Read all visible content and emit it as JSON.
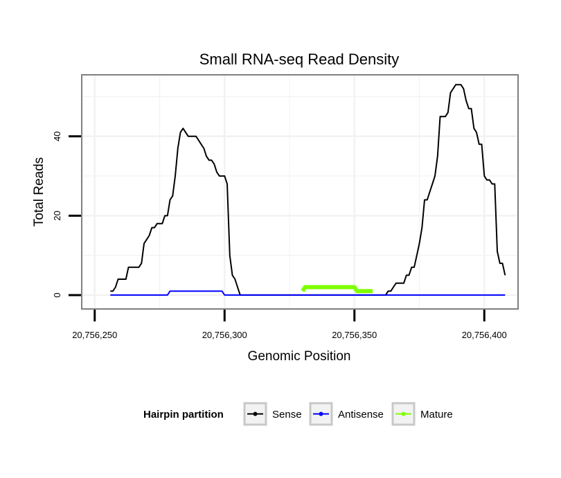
{
  "chart_data": {
    "type": "line",
    "title": "Small RNA-seq Read Density",
    "xlabel": "Genomic Position",
    "ylabel": "Total Reads",
    "xlim": [
      20756245,
      20756413
    ],
    "ylim": [
      -3.5,
      55.5
    ],
    "x_ticks": [
      20756250,
      20756300,
      20756350,
      20756400
    ],
    "x_tick_labels": [
      "20,756,250",
      "20,756,300",
      "20,756,350",
      "20,756,400"
    ],
    "y_ticks": [
      0,
      20,
      40
    ],
    "y_tick_labels": [
      "0",
      "20",
      "40"
    ],
    "grid": true,
    "legend": {
      "title": "Hairpin partition",
      "position": "bottom",
      "entries": [
        "Sense",
        "Antisense",
        "Mature"
      ]
    },
    "series": [
      {
        "name": "Sense",
        "color": "#000000",
        "points": [
          [
            20756256,
            1
          ],
          [
            20756257,
            1
          ],
          [
            20756258,
            2
          ],
          [
            20756259,
            4
          ],
          [
            20756261,
            4
          ],
          [
            20756262,
            4
          ],
          [
            20756263,
            7
          ],
          [
            20756266,
            7
          ],
          [
            20756267,
            7
          ],
          [
            20756268,
            8
          ],
          [
            20756269,
            13
          ],
          [
            20756270,
            14
          ],
          [
            20756271,
            15
          ],
          [
            20756272,
            17
          ],
          [
            20756273,
            17
          ],
          [
            20756274,
            18
          ],
          [
            20756276,
            18
          ],
          [
            20756277,
            20
          ],
          [
            20756278,
            20
          ],
          [
            20756279,
            24
          ],
          [
            20756280,
            25
          ],
          [
            20756281,
            30
          ],
          [
            20756282,
            37
          ],
          [
            20756283,
            41
          ],
          [
            20756284,
            42
          ],
          [
            20756285,
            41
          ],
          [
            20756286,
            40
          ],
          [
            20756288,
            40
          ],
          [
            20756289,
            40
          ],
          [
            20756290,
            39
          ],
          [
            20756291,
            38
          ],
          [
            20756292,
            37
          ],
          [
            20756293,
            35
          ],
          [
            20756294,
            34
          ],
          [
            20756295,
            34
          ],
          [
            20756296,
            33
          ],
          [
            20756297,
            31
          ],
          [
            20756298,
            30
          ],
          [
            20756299,
            30
          ],
          [
            20756300,
            30
          ],
          [
            20756301,
            28
          ],
          [
            20756302,
            10
          ],
          [
            20756303,
            5
          ],
          [
            20756304,
            4
          ],
          [
            20756305,
            2
          ],
          [
            20756306,
            0
          ],
          [
            20756330,
            0
          ],
          [
            20756362,
            0
          ],
          [
            20756363,
            1
          ],
          [
            20756364,
            1
          ],
          [
            20756365,
            2
          ],
          [
            20756366,
            3
          ],
          [
            20756368,
            3
          ],
          [
            20756369,
            3
          ],
          [
            20756370,
            5
          ],
          [
            20756371,
            5
          ],
          [
            20756372,
            7
          ],
          [
            20756373,
            7
          ],
          [
            20756374,
            10
          ],
          [
            20756375,
            13
          ],
          [
            20756376,
            17
          ],
          [
            20756377,
            24
          ],
          [
            20756378,
            24
          ],
          [
            20756379,
            26
          ],
          [
            20756380,
            28
          ],
          [
            20756381,
            30
          ],
          [
            20756382,
            35
          ],
          [
            20756383,
            45
          ],
          [
            20756385,
            45
          ],
          [
            20756386,
            46
          ],
          [
            20756387,
            51
          ],
          [
            20756388,
            52
          ],
          [
            20756389,
            53
          ],
          [
            20756391,
            53
          ],
          [
            20756392,
            52
          ],
          [
            20756393,
            49
          ],
          [
            20756394,
            47
          ],
          [
            20756395,
            47
          ],
          [
            20756396,
            42
          ],
          [
            20756397,
            41
          ],
          [
            20756398,
            38
          ],
          [
            20756399,
            38
          ],
          [
            20756400,
            30
          ],
          [
            20756401,
            29
          ],
          [
            20756402,
            29
          ],
          [
            20756403,
            28
          ],
          [
            20756404,
            28
          ],
          [
            20756405,
            11
          ],
          [
            20756406,
            8
          ],
          [
            20756407,
            8
          ],
          [
            20756408,
            5
          ]
        ]
      },
      {
        "name": "Antisense",
        "color": "#0000ff",
        "points": [
          [
            20756256,
            0
          ],
          [
            20756278,
            0
          ],
          [
            20756279,
            1
          ],
          [
            20756299,
            1
          ],
          [
            20756300,
            0
          ],
          [
            20756408,
            0
          ]
        ]
      },
      {
        "name": "Mature",
        "color": "#7fff00",
        "points": [
          [
            20756330,
            1
          ],
          [
            20756331,
            2
          ],
          [
            20756350,
            2
          ],
          [
            20756351,
            1
          ],
          [
            20756357,
            1
          ]
        ]
      }
    ]
  }
}
